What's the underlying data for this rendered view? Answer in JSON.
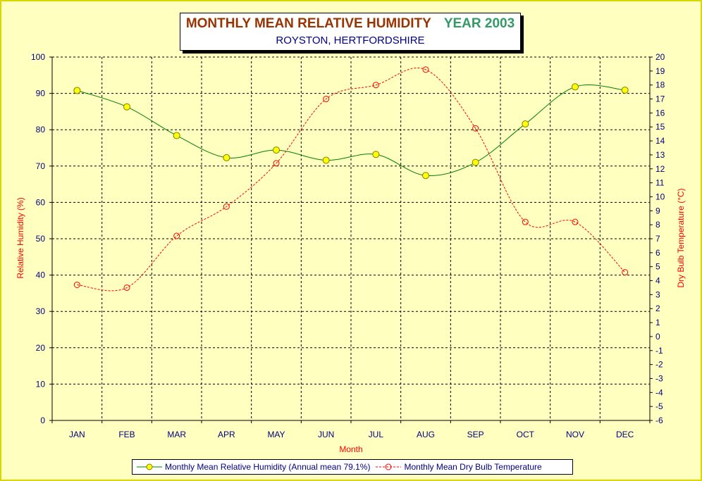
{
  "chart_data": {
    "type": "line",
    "title": "MONTHLY MEAN RELATIVE HUMIDITY",
    "title_suffix": "YEAR 2003",
    "subtitle": "ROYSTON, HERTFORDSHIRE",
    "xlabel": "Month",
    "ylabel": "Relative Humidity (%)",
    "y2label": "Dry Bulb Temperature (°C)",
    "categories": [
      "JAN",
      "FEB",
      "MAR",
      "APR",
      "MAY",
      "JUN",
      "JUL",
      "AUG",
      "SEP",
      "OCT",
      "NOV",
      "DEC"
    ],
    "ylim": [
      0,
      100
    ],
    "yticks": [
      0,
      10,
      20,
      30,
      40,
      50,
      60,
      70,
      80,
      90,
      100
    ],
    "y2lim": [
      -6,
      20
    ],
    "y2ticks": [
      -6,
      -5,
      -4,
      -3,
      -2,
      -1,
      0,
      1,
      2,
      3,
      4,
      5,
      6,
      7,
      8,
      9,
      10,
      11,
      12,
      13,
      14,
      15,
      16,
      17,
      18,
      19,
      20
    ],
    "grid": true,
    "legend_position": "bottom",
    "series": [
      {
        "name": "Monthly Mean Relative Humidity (Annual mean 79.1%)",
        "axis": "left",
        "color": "#008000",
        "marker_fill": "#ffff00",
        "line_style": "solid",
        "values": [
          90.8,
          86.3,
          78.4,
          72.3,
          74.4,
          71.6,
          73.2,
          67.4,
          71.0,
          81.6,
          91.8,
          90.9
        ]
      },
      {
        "name": "Monthly Mean Dry Bulb Temperature",
        "axis": "right",
        "color": "#ff0000",
        "marker_fill": "none",
        "line_style": "dashed",
        "values": [
          3.7,
          3.5,
          7.2,
          9.3,
          12.4,
          17.0,
          18.0,
          19.1,
          14.9,
          8.2,
          8.2,
          4.6
        ]
      }
    ]
  },
  "colors": {
    "axis_text": "#000080",
    "axis_title": "#ff0000",
    "title": "#993300",
    "year": "#339966",
    "background": "#ffffc0"
  }
}
